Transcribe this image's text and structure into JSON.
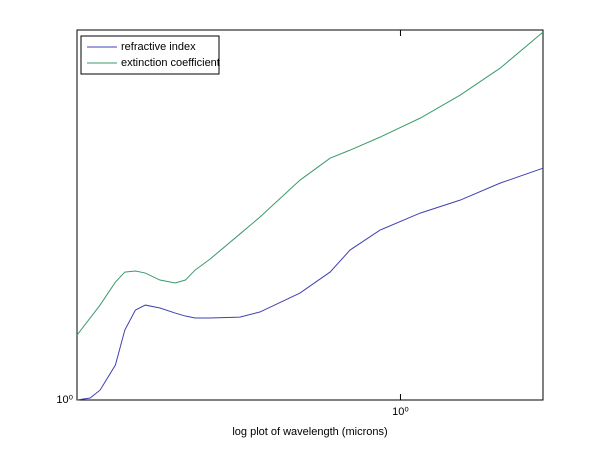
{
  "chart_data": {
    "type": "line",
    "xlabel": "log plot of wavelength (microns)",
    "xscale": "log",
    "yscale": "log",
    "x": [
      0.125,
      0.136,
      0.145,
      0.16,
      0.17,
      0.182,
      0.194,
      0.213,
      0.235,
      0.251,
      0.267,
      0.294,
      0.356,
      0.405,
      0.524,
      0.636,
      0.723,
      0.877,
      1.135,
      1.467,
      1.897,
      2.5
    ],
    "series": [
      {
        "name": "refractive index",
        "color": "#4040b0",
        "values": [
          1.0,
          1.012,
          1.06,
          1.228,
          1.509,
          1.697,
          1.747,
          1.717,
          1.667,
          1.638,
          1.619,
          1.619,
          1.628,
          1.677,
          1.875,
          2.121,
          2.414,
          2.715,
          3.0,
          3.237,
          3.578,
          3.906
        ]
      },
      {
        "name": "extinction coefficient",
        "color": "#3a9a6a",
        "values": [
          1.465,
          1.619,
          1.747,
          2.0,
          2.121,
          2.134,
          2.109,
          2.024,
          1.989,
          2.024,
          2.146,
          2.289,
          2.652,
          2.93,
          3.64,
          4.143,
          4.343,
          4.688,
          5.242,
          5.999,
          7.03,
          8.69
        ]
      }
    ],
    "xlim": [
      0.125,
      2.5
    ],
    "ylim": [
      1,
      8.8
    ],
    "xticks": [
      {
        "value": 1,
        "label": "10⁰"
      }
    ],
    "yticks": [
      {
        "value": 1,
        "label": "10⁰"
      }
    ],
    "legend": "upper left"
  }
}
